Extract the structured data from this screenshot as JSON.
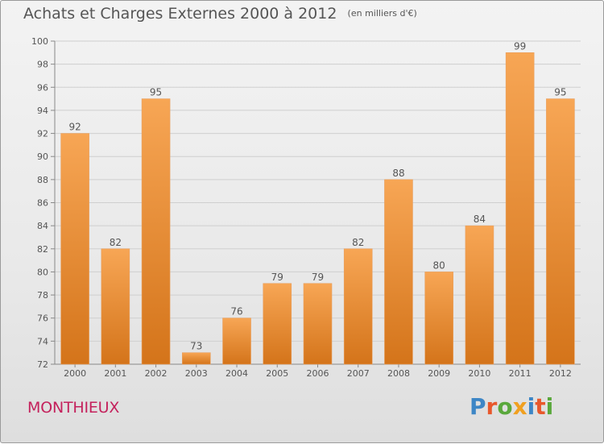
{
  "header": {
    "title": "Achats et Charges Externes 2000 à 2012",
    "subtitle": "(en milliers d'€)"
  },
  "footer": {
    "commune": "MONTHIEUX",
    "brand": "Proxiti"
  },
  "colors": {
    "bar_top": "#f7a655",
    "bar_bottom": "#d4741a",
    "bar_edge": "#e8a060",
    "commune": "#c4215c",
    "text": "#555555",
    "grid": "#cfcfcf",
    "brand_letters": [
      "#3d86c6",
      "#e8582c",
      "#5aa83c",
      "#f0a020",
      "#3d86c6",
      "#e8582c",
      "#5aa83c"
    ]
  },
  "chart_data": {
    "type": "bar",
    "title": "Achats et Charges Externes 2000 à 2012",
    "subtitle": "(en milliers d'€)",
    "xlabel": "",
    "ylabel": "",
    "categories": [
      "2000",
      "2001",
      "2002",
      "2003",
      "2004",
      "2005",
      "2006",
      "2007",
      "2008",
      "2009",
      "2010",
      "2011",
      "2012"
    ],
    "values": [
      92,
      82,
      95,
      73,
      76,
      79,
      79,
      82,
      88,
      80,
      84,
      99,
      95
    ],
    "ylim": [
      72,
      100
    ],
    "yticks": [
      72,
      74,
      76,
      78,
      80,
      82,
      84,
      86,
      88,
      90,
      92,
      94,
      96,
      98,
      100
    ],
    "grid": true,
    "legend": "none"
  }
}
